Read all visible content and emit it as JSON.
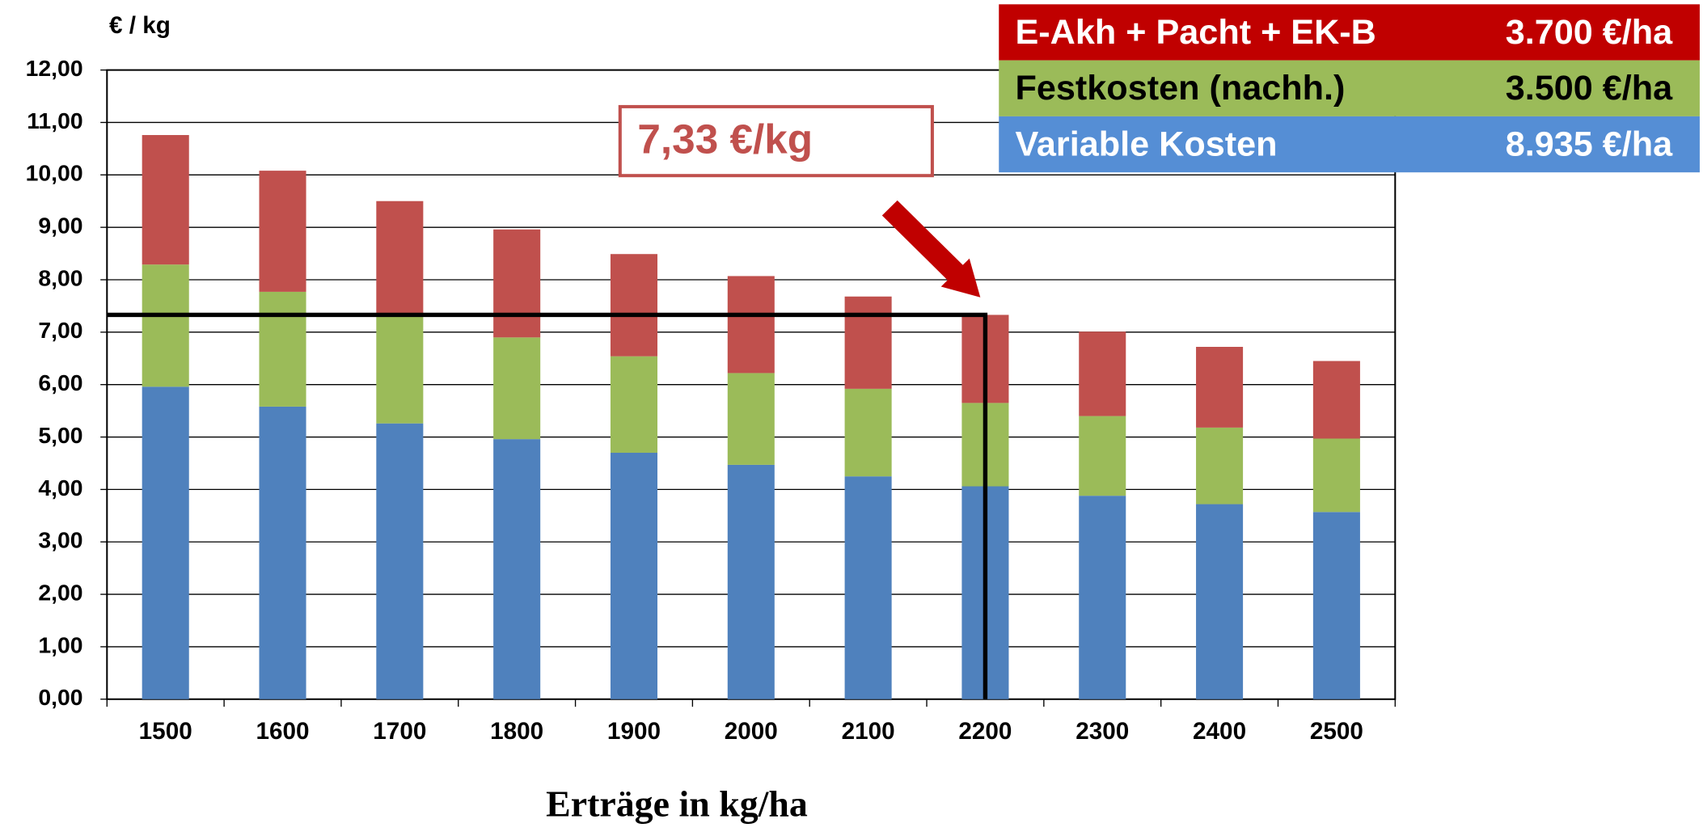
{
  "chart_data": {
    "type": "stacked_bar",
    "y_label": "€ / kg",
    "x_label": "Erträge in kg/ha",
    "categories": [
      "1500",
      "1600",
      "1700",
      "1800",
      "1900",
      "2000",
      "2100",
      "2200",
      "2300",
      "2400",
      "2500"
    ],
    "series": [
      {
        "name": "Variable Kosten",
        "amount": "8.935 €/ha",
        "color": "#4f81bd",
        "legend_color": "#558ed5",
        "values": [
          5.96,
          5.58,
          5.26,
          4.96,
          4.7,
          4.47,
          4.25,
          4.06,
          3.88,
          3.72,
          3.57
        ]
      },
      {
        "name": "Festkosten (nachh.)",
        "amount": "3.500 €/ha",
        "color": "#9bbb59",
        "legend_color": "#9bbb59",
        "values": [
          2.33,
          2.19,
          2.06,
          1.94,
          1.84,
          1.75,
          1.67,
          1.59,
          1.52,
          1.46,
          1.4
        ]
      },
      {
        "name": "E-Akh + Pacht + EK-B",
        "amount": "3.700 €/ha",
        "color": "#c0504d",
        "legend_color": "#c00000",
        "values": [
          2.47,
          2.31,
          2.18,
          2.06,
          1.95,
          1.85,
          1.76,
          1.68,
          1.61,
          1.54,
          1.48
        ]
      }
    ],
    "ylim": [
      0,
      12
    ],
    "yticks": [
      {
        "value": 0,
        "label": "0,00"
      },
      {
        "value": 1,
        "label": "1,00"
      },
      {
        "value": 2,
        "label": "2,00"
      },
      {
        "value": 3,
        "label": "3,00"
      },
      {
        "value": 4,
        "label": "4,00"
      },
      {
        "value": 5,
        "label": "5,00"
      },
      {
        "value": 6,
        "label": "6,00"
      },
      {
        "value": 7,
        "label": "7,00"
      },
      {
        "value": 8,
        "label": "8,00"
      },
      {
        "value": 9,
        "label": "9,00"
      },
      {
        "value": 10,
        "label": "10,00"
      },
      {
        "value": 11,
        "label": "11,00"
      },
      {
        "value": 12,
        "label": "12,00"
      }
    ],
    "grid": true,
    "annotation": {
      "label": "7,33 €/kg",
      "value": 7.33,
      "category": "2200",
      "color": "#c0504d",
      "arrow_color": "#c00000"
    }
  }
}
